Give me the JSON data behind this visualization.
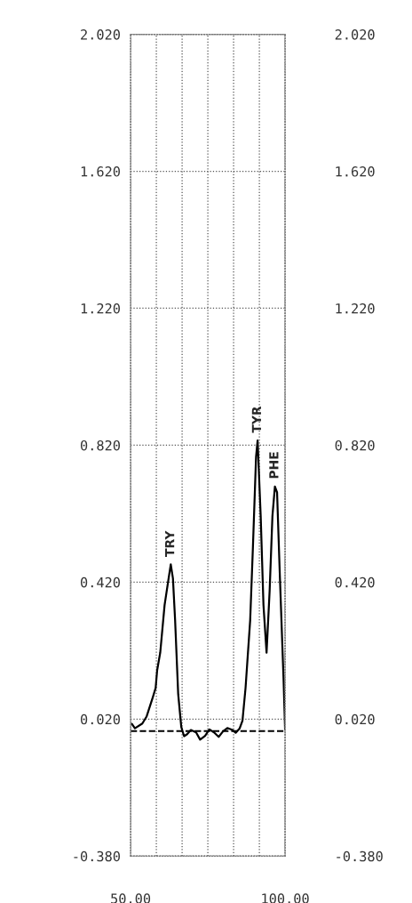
{
  "chart_data": {
    "type": "line",
    "x": [
      50.4,
      51.4,
      53.8,
      55.2,
      57.2,
      58.1,
      58.6,
      59.6,
      61.0,
      62.3,
      63.0,
      63.7,
      64.4,
      65.4,
      66.4,
      67.3,
      68.3,
      69.5,
      71.2,
      72.5,
      74.1,
      75.5,
      77.0,
      78.5,
      79.9,
      81.3,
      82.8,
      84.0,
      85.3,
      86.2,
      87.2,
      88.7,
      89.6,
      90.6,
      91.1,
      92.1,
      93.0,
      94.0,
      95.0,
      95.9,
      96.7,
      97.4,
      98.3,
      99.5,
      100.0
    ],
    "series": [
      {
        "color": "#000000",
        "values": [
          0.006,
          -0.007,
          0.007,
          0.028,
          0.084,
          0.111,
          0.163,
          0.215,
          0.353,
          0.431,
          0.472,
          0.431,
          0.309,
          0.093,
          -0.003,
          -0.03,
          -0.024,
          -0.012,
          -0.019,
          -0.04,
          -0.029,
          -0.01,
          -0.019,
          -0.032,
          -0.016,
          -0.006,
          -0.011,
          -0.02,
          -0.007,
          0.015,
          0.111,
          0.309,
          0.526,
          0.786,
          0.834,
          0.613,
          0.353,
          0.214,
          0.396,
          0.613,
          0.699,
          0.682,
          0.439,
          0.136,
          -0.011
        ]
      }
    ],
    "xlim": [
      50,
      100
    ],
    "xticks": [
      {
        "value": 50,
        "label": "50.00"
      },
      {
        "value": 58.33,
        "label": null
      },
      {
        "value": 66.67,
        "label": null
      },
      {
        "value": 75,
        "label": null
      },
      {
        "value": 83.33,
        "label": null
      },
      {
        "value": 91.67,
        "label": null
      },
      {
        "value": 100,
        "label": "100.00"
      }
    ],
    "ylim": [
      -0.38,
      2.02
    ],
    "yticks": [
      {
        "value": -0.38,
        "label": "-0.380"
      },
      {
        "value": 0.02,
        "label": "0.020"
      },
      {
        "value": 0.42,
        "label": "0.420"
      },
      {
        "value": 0.82,
        "label": "0.820"
      },
      {
        "value": 1.22,
        "label": "1.220"
      },
      {
        "value": 1.62,
        "label": "1.620"
      },
      {
        "value": 2.02,
        "label": "2.020"
      }
    ],
    "y2lim": [
      -0.38,
      2.02
    ],
    "y2ticks": [
      {
        "value": -0.38,
        "label": "-0.380"
      },
      {
        "value": 0.02,
        "label": "0.020"
      },
      {
        "value": 0.42,
        "label": "0.420"
      },
      {
        "value": 0.82,
        "label": "0.820"
      },
      {
        "value": 1.22,
        "label": "1.220"
      },
      {
        "value": 1.62,
        "label": "1.620"
      },
      {
        "value": 2.02,
        "label": "2.020"
      }
    ],
    "ref_lines": [
      {
        "axis": "y",
        "value": -0.015,
        "color": "#000000",
        "line_style": "dashed"
      }
    ],
    "annotations": [
      {
        "text": "TRY",
        "x": 63.0,
        "y": 0.472
      },
      {
        "text": "TYR",
        "x": 91.1,
        "y": 0.834
      },
      {
        "text": "PHE",
        "x": 96.7,
        "y": 0.699
      }
    ],
    "grid": true,
    "marker": "none",
    "line_style": "solid"
  }
}
